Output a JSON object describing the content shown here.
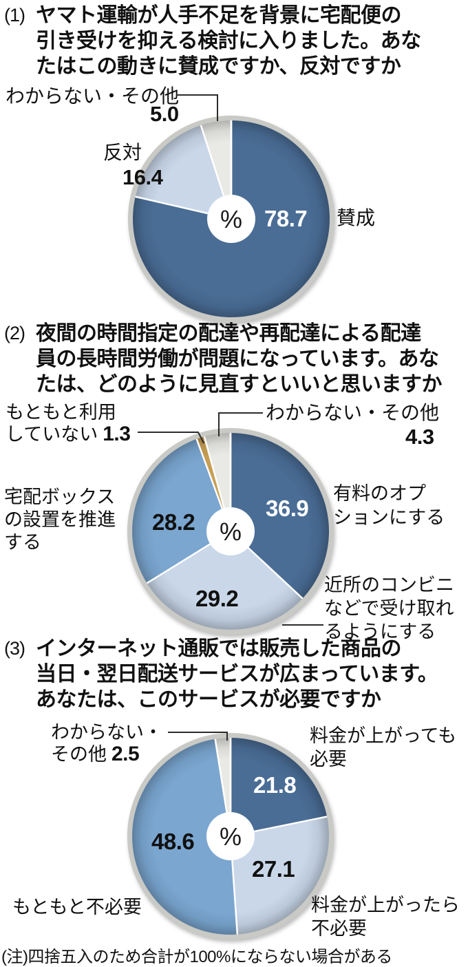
{
  "palette": {
    "dark_blue": "#4a6d96",
    "light_blue": "#c9d7e9",
    "mid_blue": "#7aa6d0",
    "gray": "#e9e9e5",
    "gold": "#c79f53",
    "ring": "#c9c9c5",
    "leader_line": "#2b2b2b",
    "value_on_dark": "#ffffff",
    "text": "#111111"
  },
  "questions": [
    {
      "number": "(1)",
      "text": "ヤマト運輸が人手不足を背景に宅配便の\n引き受けを抑える検討に入りました。あな\nたはこの動きに賛成ですか、反対ですか"
    },
    {
      "number": "(2)",
      "text": "夜間の時間指定の配達や再配達による配達\n員の長時間労働が問題になっています。あな\nたは、どのように見直すといいと思いますか"
    },
    {
      "number": "(3)",
      "text": "インターネット通販では販売した商品の\n当日・翌日配送サービスが広まっています。\nあなたは、このサービスが必要ですか"
    }
  ],
  "chart_data": [
    {
      "type": "pie",
      "unit": "%",
      "center_label": "%",
      "start_angle_deg": 0,
      "direction": "clockwise-from-top",
      "slices": [
        {
          "label": "賛成",
          "value": 78.7,
          "display": "78.7",
          "color": "#4a6d96",
          "text_color": "#ffffff"
        },
        {
          "label": "反対",
          "value": 16.4,
          "display": "16.4",
          "color": "#c9d7e9",
          "text_color": "#111111"
        },
        {
          "label": "わからない・その他",
          "value": 5.0,
          "display": "5.0",
          "color": "#e9e9e5",
          "text_color": "#111111"
        }
      ]
    },
    {
      "type": "pie",
      "unit": "%",
      "center_label": "%",
      "start_angle_deg": 0,
      "direction": "clockwise-from-top",
      "slices": [
        {
          "label": "有料のオプションにする",
          "value": 36.9,
          "display": "36.9",
          "color": "#4a6d96",
          "text_color": "#ffffff"
        },
        {
          "label": "近所のコンビニなどで受け取れるようにする",
          "value": 29.2,
          "display": "29.2",
          "color": "#c9d7e9",
          "text_color": "#111111"
        },
        {
          "label": "宅配ボックスの設置を推進する",
          "value": 28.2,
          "display": "28.2",
          "color": "#7aa6d0",
          "text_color": "#111111"
        },
        {
          "label": "もともと利用していない",
          "value": 1.3,
          "display": "1.3",
          "color": "#c79f53",
          "text_color": "#111111"
        },
        {
          "label": "わからない・その他",
          "value": 4.3,
          "display": "4.3",
          "color": "#e9e9e5",
          "text_color": "#111111"
        }
      ]
    },
    {
      "type": "pie",
      "unit": "%",
      "center_label": "%",
      "start_angle_deg": 0,
      "direction": "clockwise-from-top",
      "slices": [
        {
          "label": "料金が上がっても必要",
          "value": 21.8,
          "display": "21.8",
          "color": "#4a6d96",
          "text_color": "#ffffff"
        },
        {
          "label": "料金が上がったら不必要",
          "value": 27.1,
          "display": "27.1",
          "color": "#c9d7e9",
          "text_color": "#111111"
        },
        {
          "label": "もともと不必要",
          "value": 48.6,
          "display": "48.6",
          "color": "#7aa6d0",
          "text_color": "#111111"
        },
        {
          "label": "わからない・その他",
          "value": 2.5,
          "display": "2.5",
          "color": "#e9e9e5",
          "text_color": "#111111"
        }
      ]
    }
  ],
  "annotations": {
    "q1": {
      "dk": "わからない・その他",
      "dk_v": "5.0",
      "hantai": "反対",
      "hantai_v": "16.4",
      "sansei": "賛成",
      "sansei_v": "78.7"
    },
    "q2": {
      "nouse": "もともと利用\nしていない",
      "nouse_v": "1.3",
      "dk": "わからない・その他",
      "dk_v": "4.3",
      "paid": "有料のオプ\nションにする",
      "paid_v": "36.9",
      "box": "宅配ボックス\nの設置を推進\nする",
      "box_v": "28.2",
      "conv": "近所のコンビニ\nなどで受け取れ\nるようにする",
      "conv_v": "29.2"
    },
    "q3": {
      "dk": "わからない・\nその他",
      "dk_v": "2.5",
      "need": "料金が上がっても\n必要",
      "need_v": "21.8",
      "noneed": "料金が上がったら\n不必要",
      "noneed_v": "27.1",
      "never": "もともと不必要",
      "never_v": "48.6"
    }
  },
  "note": "(注)四捨五入のため合計が100%にならない場合がある"
}
